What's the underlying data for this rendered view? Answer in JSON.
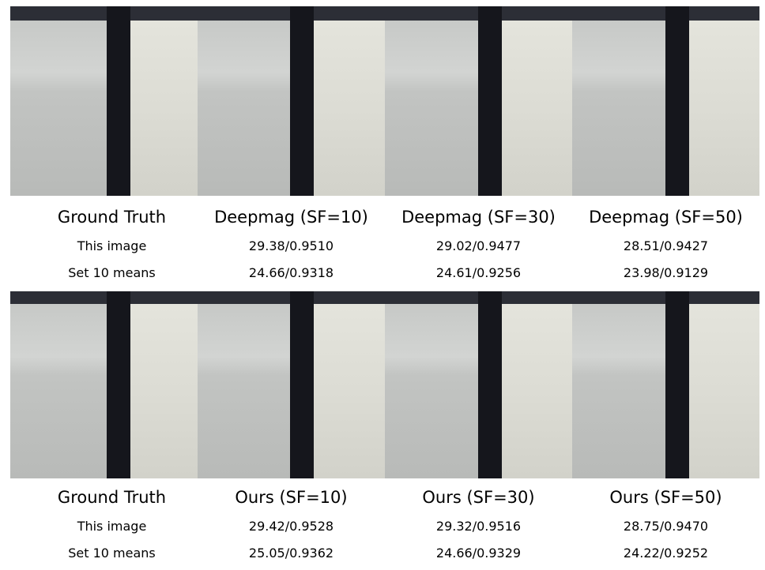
{
  "top": {
    "captions": [
      "Ground Truth",
      "Deepmag (SF=10)",
      "Deepmag (SF=30)",
      "Deepmag (SF=50)"
    ],
    "row_labels": [
      "This image",
      "Set 10 means"
    ],
    "this_image": [
      "29.38/0.9510",
      "29.02/0.9477",
      "28.51/0.9427"
    ],
    "set10_means": [
      "24.66/0.9318",
      "24.61/0.9256",
      "23.98/0.9129"
    ]
  },
  "bottom": {
    "captions": [
      "Ground Truth",
      "Ours (SF=10)",
      "Ours (SF=30)",
      "Ours (SF=50)"
    ],
    "row_labels": [
      "This image",
      "Set 10 means"
    ],
    "this_image": [
      "29.42/0.9528",
      "29.32/0.9516",
      "28.75/0.9470"
    ],
    "set10_means": [
      "25.05/0.9362",
      "24.66/0.9329",
      "24.22/0.9252"
    ]
  }
}
